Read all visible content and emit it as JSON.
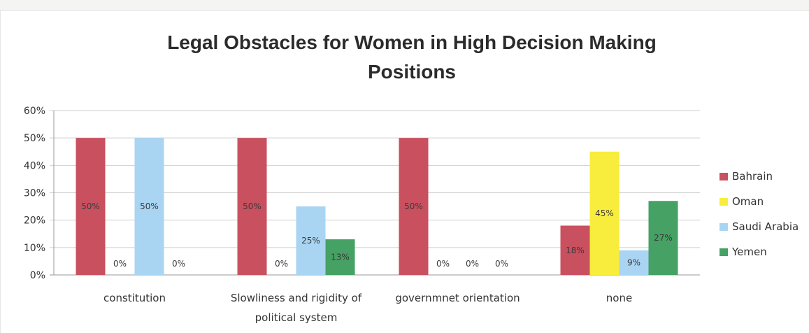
{
  "chart_data": {
    "type": "bar",
    "title": "Legal Obstacles for Women in High Decision Making Positions",
    "title_lines": [
      "Legal Obstacles for Women in High Decision Making",
      "Positions"
    ],
    "categories": [
      "constitution",
      "Slowliness and rigidity of political system",
      "governmnet orientation",
      "none"
    ],
    "category_lines": [
      [
        "constitution"
      ],
      [
        "Slowliness and rigidity of",
        "political system"
      ],
      [
        "governmnet orientation"
      ],
      [
        "none"
      ]
    ],
    "series": [
      {
        "name": "Bahrain",
        "color": "#c9505f",
        "values": [
          50,
          50,
          50,
          18
        ],
        "labels": [
          "50%",
          "50%",
          "50%",
          "18%"
        ]
      },
      {
        "name": "Oman",
        "color": "#f8ed3c",
        "values": [
          0,
          0,
          0,
          45
        ],
        "labels": [
          "0%",
          "0%",
          "0%",
          "45%"
        ]
      },
      {
        "name": "Saudi Arabia",
        "color": "#a9d5f3",
        "values": [
          50,
          25,
          0,
          9
        ],
        "labels": [
          "50%",
          "25%",
          "0%",
          "9%"
        ]
      },
      {
        "name": "Yemen",
        "color": "#45a164",
        "values": [
          0,
          13,
          0,
          27
        ],
        "labels": [
          "0%",
          "13%",
          "0%",
          "27%"
        ]
      }
    ],
    "y_ticks": [
      "0%",
      "10%",
      "20%",
      "30%",
      "40%",
      "50%",
      "60%"
    ],
    "ylim": [
      0,
      60
    ],
    "y_unit": "%",
    "grid": true,
    "legend_position": "right"
  }
}
